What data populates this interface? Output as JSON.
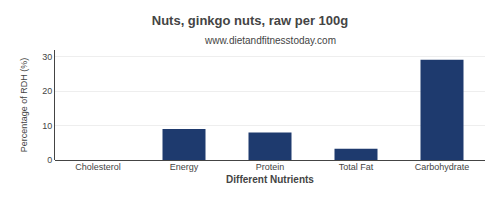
{
  "chart_data": {
    "type": "bar",
    "title": "Nuts, ginkgo nuts, raw per 100g",
    "subtitle": "www.dietandfitnesstoday.com",
    "xlabel": "Different Nutrients",
    "ylabel": "Percentage of RDH (%)",
    "categories": [
      "Cholesterol",
      "Energy",
      "Protein",
      "Total Fat",
      "Carbohydrate"
    ],
    "values": [
      0,
      9.0,
      8.0,
      3.3,
      29.2
    ],
    "color": "#1e3a6e",
    "ylim": [
      0,
      32
    ],
    "yticks": [
      0,
      10,
      20,
      30
    ],
    "grid": true
  }
}
